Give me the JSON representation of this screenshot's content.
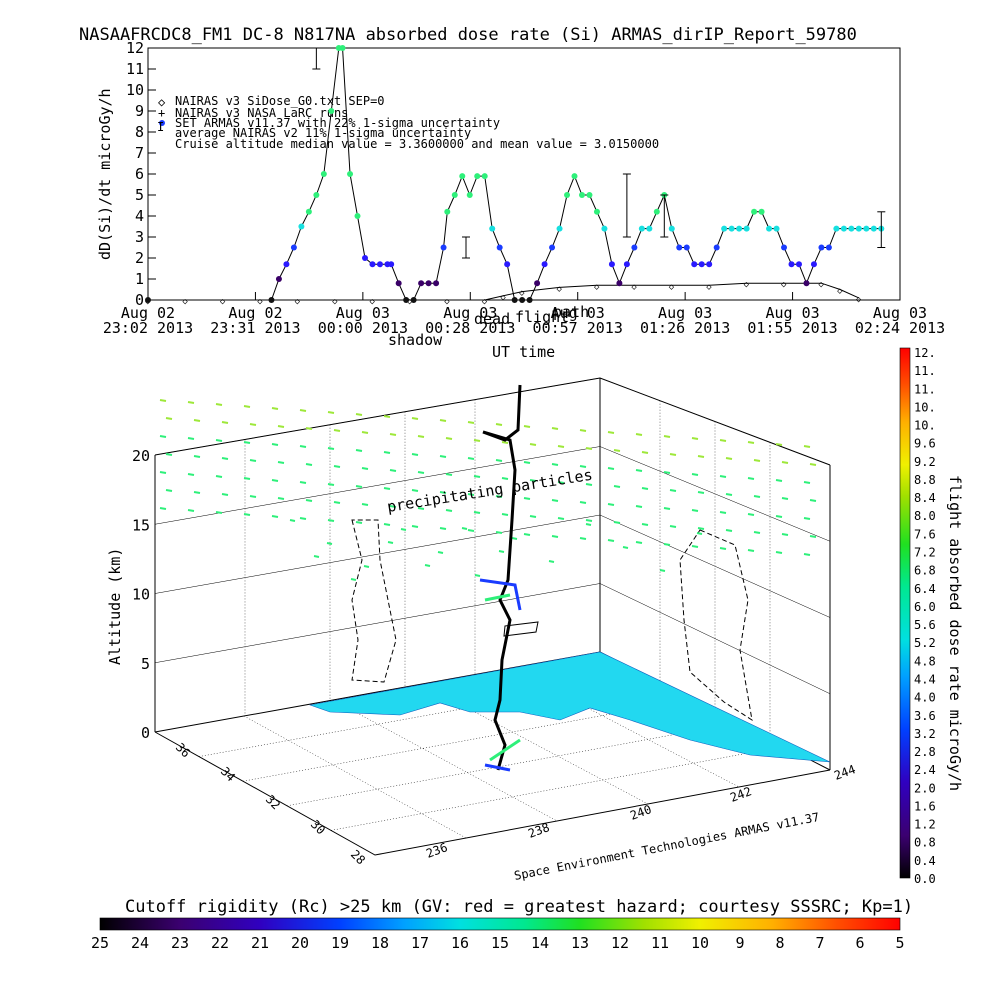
{
  "title": "NASAAFRCDC8_FM1 DC-8   N817NA absorbed dose rate (Si) ARMAS_dirIP_Report_59780",
  "top_chart": {
    "ylabel": "dD(Si)/dt microGy/h",
    "xlabel": "UT time",
    "y_ticks": [
      "0",
      "1",
      "2",
      "3",
      "4",
      "5",
      "6",
      "7",
      "8",
      "9",
      "10",
      "11",
      "12"
    ],
    "x_tick_labels": [
      [
        "Aug 02",
        "23:02 2013"
      ],
      [
        "Aug 02",
        "23:31 2013"
      ],
      [
        "Aug 03",
        "00:00 2013"
      ],
      [
        "Aug 03",
        "00:28 2013"
      ],
      [
        "Aug 03",
        "00:57 2013"
      ],
      [
        "Aug 03",
        "01:26 2013"
      ],
      [
        "Aug 03",
        "01:55 2013"
      ],
      [
        "Aug 03",
        "02:24 2013"
      ]
    ],
    "legend": [
      "NAIRAS v3 SiDose_G0.txt SEP=0",
      "NAIRAS v3 NASA LaRC runs",
      "SET ARMAS v11.37 with 22% 1-sigma uncertainty",
      "average NAIRAS v2 11% 1-sigma uncertainty",
      "Cruise altitude median value = 3.3600000 and mean value = 3.0150000"
    ],
    "overlay_labels": [
      "shadow",
      "dead",
      "flight",
      "path"
    ]
  },
  "chart_data": [
    {
      "type": "line",
      "title": "NASAAFRCDC8_FM1 DC-8   N817NA absorbed dose rate (Si) ARMAS_dirIP_Report_59780",
      "xlabel": "UT time",
      "ylabel": "dD(Si)/dt microGy/h",
      "ylim": [
        0,
        12
      ],
      "x_unit": "minutes after Aug 02 23:02 2013",
      "xlim": [
        0,
        201
      ],
      "series": [
        {
          "name": "SET ARMAS v11.37 with 22% 1-sigma uncertainty",
          "x": [
            0,
            33,
            35,
            37,
            39,
            41,
            43,
            45,
            47,
            49,
            51,
            52,
            54,
            56,
            58,
            60,
            62,
            64,
            65,
            67,
            69,
            71,
            73,
            75,
            77,
            79,
            80,
            82,
            84,
            86,
            88,
            90,
            92,
            94,
            96,
            98,
            100,
            102,
            104,
            106,
            108,
            110,
            112,
            114,
            116,
            118,
            120,
            122,
            124,
            126,
            128,
            130,
            132,
            134,
            136,
            138,
            140,
            142,
            144,
            146,
            148,
            150,
            152,
            154,
            156,
            158,
            160,
            162,
            164,
            166,
            168,
            170,
            172,
            174,
            176,
            178,
            180,
            182,
            184,
            186,
            188,
            190,
            192,
            194,
            196
          ],
          "y": [
            0,
            0,
            1,
            1.7,
            2.5,
            3.5,
            4.2,
            5,
            6,
            9,
            12,
            12,
            6,
            4,
            2,
            1.7,
            1.7,
            1.7,
            1.7,
            0.8,
            0,
            0,
            0.8,
            0.8,
            0.8,
            2.5,
            4.2,
            5,
            5.9,
            5,
            5.9,
            5.9,
            3.4,
            2.5,
            1.7,
            0,
            0,
            0,
            0.8,
            1.7,
            2.5,
            3.4,
            5,
            5.9,
            5,
            5,
            4.2,
            3.4,
            1.7,
            0.8,
            1.7,
            2.5,
            3.4,
            3.4,
            4.2,
            5,
            3.4,
            2.5,
            2.5,
            1.7,
            1.7,
            1.7,
            2.5,
            3.4,
            3.4,
            3.4,
            3.4,
            4.2,
            4.2,
            3.4,
            3.4,
            2.5,
            1.7,
            1.7,
            0.8,
            1.7,
            2.5,
            2.5,
            3.4,
            3.4,
            3.4,
            3.4,
            3.4,
            3.4,
            3.4
          ]
        },
        {
          "name": "NAIRAS v3 SiDose_G0.txt SEP=0",
          "x": [
            0,
            10,
            20,
            30,
            40,
            50,
            60,
            70,
            80,
            90,
            95,
            100,
            110,
            120,
            130,
            140,
            150,
            160,
            170,
            180,
            185,
            190
          ],
          "y": [
            0,
            0,
            0,
            0,
            0,
            0,
            0,
            0,
            0,
            0,
            0.2,
            0.4,
            0.6,
            0.7,
            0.7,
            0.7,
            0.7,
            0.8,
            0.8,
            0.8,
            0.5,
            0.1
          ]
        }
      ],
      "error_bars": [
        {
          "x": 45,
          "low": 11,
          "high": 12
        },
        {
          "x": 85,
          "low": 2,
          "high": 3
        },
        {
          "x": 128,
          "low": 3,
          "high": 6
        },
        {
          "x": 138,
          "low": 3,
          "high": 5
        },
        {
          "x": 196,
          "low": 2.5,
          "high": 4.2
        }
      ]
    },
    {
      "type": "scatter",
      "title": "precipitating particles",
      "ylabel": "Altitude (km)",
      "xlabel": "Space Environment Technologies ARMAS v11.37",
      "z_ticks": [
        "0",
        "5",
        "10",
        "15",
        "20"
      ],
      "lat_ticks": [
        "28",
        "30",
        "32",
        "34",
        "36"
      ],
      "lon_ticks": [
        "236",
        "238",
        "240",
        "242",
        "244"
      ]
    }
  ],
  "right_colorbar": {
    "label": "flight absorbed dose rate microGy/h",
    "ticks": [
      "0.0",
      "0.4",
      "0.8",
      "1.2",
      "1.6",
      "2.0",
      "2.4",
      "2.8",
      "3.2",
      "3.6",
      "4.0",
      "4.4",
      "4.8",
      "5.2",
      "5.6",
      "6.0",
      "6.4",
      "6.8",
      "7.2",
      "7.6",
      "8.0",
      "8.4",
      "8.8",
      "9.2",
      "9.6",
      "10.",
      "10.",
      "11.",
      "11.",
      "12."
    ]
  },
  "bottom_colorbar": {
    "title": "Cutoff rigidity (Rc) >25 km (GV: red = greatest hazard; courtesy SSSRC; Kp=1)",
    "ticks": [
      "25",
      "24",
      "23",
      "22",
      "21",
      "20",
      "19",
      "18",
      "17",
      "16",
      "15",
      "14",
      "13",
      "12",
      "11",
      "10",
      "9",
      "8",
      "7",
      "6",
      "5"
    ]
  },
  "colors": {
    "armas_low": "#3a0068",
    "armas_mid": "#1a3cff",
    "armas_cyan": "#17e0e0",
    "armas_green": "#2ef07a",
    "nairas": "#000000",
    "ground": "#22d8f0",
    "error_bar": "#000000"
  }
}
